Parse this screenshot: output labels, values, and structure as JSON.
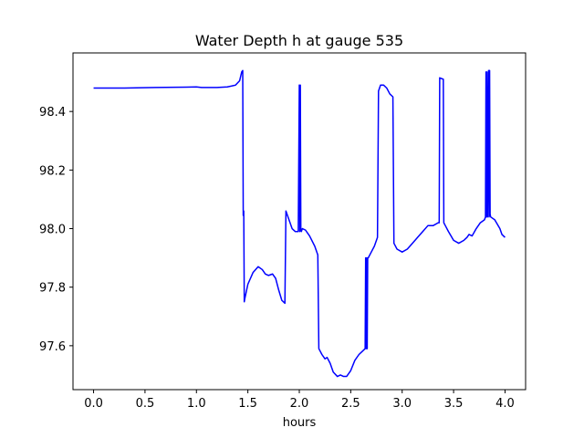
{
  "chart_data": {
    "type": "line",
    "title": "Water Depth h at gauge 535",
    "xlabel": "hours",
    "ylabel": "",
    "xlim": [
      -0.2,
      4.2
    ],
    "ylim": [
      97.45,
      98.6
    ],
    "x_ticks": [
      0.0,
      0.5,
      1.0,
      1.5,
      2.0,
      2.5,
      3.0,
      3.5,
      4.0
    ],
    "x_tick_labels": [
      "0.0",
      "0.5",
      "1.0",
      "1.5",
      "2.0",
      "2.5",
      "3.0",
      "3.5",
      "4.0"
    ],
    "y_ticks": [
      97.6,
      97.8,
      98.0,
      98.2,
      98.4
    ],
    "y_tick_labels": [
      "97.6",
      "97.8",
      "98.0",
      "98.2",
      "98.4"
    ],
    "grid": false,
    "legend": "none",
    "series": [
      {
        "color": "#0000ff",
        "x": [
          0.0,
          0.3,
          0.6,
          0.9,
          1.0,
          1.05,
          1.2,
          1.3,
          1.38,
          1.42,
          1.44,
          1.45,
          1.455,
          1.46,
          1.465,
          1.47,
          1.5,
          1.55,
          1.6,
          1.64,
          1.67,
          1.7,
          1.74,
          1.77,
          1.8,
          1.83,
          1.86,
          1.87,
          1.875,
          1.9,
          1.93,
          1.96,
          1.99,
          2.0,
          2.005,
          2.01,
          2.015,
          2.02,
          2.025,
          2.03,
          2.06,
          2.1,
          2.15,
          2.18,
          2.19,
          2.22,
          2.25,
          2.27,
          2.3,
          2.33,
          2.37,
          2.4,
          2.43,
          2.46,
          2.5,
          2.54,
          2.58,
          2.61,
          2.64,
          2.645,
          2.65,
          2.655,
          2.66,
          2.665,
          2.67,
          2.7,
          2.73,
          2.76,
          2.77,
          2.79,
          2.82,
          2.85,
          2.88,
          2.91,
          2.92,
          2.95,
          3.0,
          3.05,
          3.1,
          3.15,
          3.2,
          3.25,
          3.3,
          3.35,
          3.36,
          3.365,
          3.4,
          3.405,
          3.42,
          3.45,
          3.5,
          3.55,
          3.6,
          3.63,
          3.65,
          3.68,
          3.72,
          3.76,
          3.8,
          3.81,
          3.815,
          3.82,
          3.825,
          3.83,
          3.84,
          3.845,
          3.85,
          3.855,
          3.86,
          3.9,
          3.95,
          3.97,
          4.0
        ],
        "values": [
          98.48,
          98.48,
          98.482,
          98.483,
          98.484,
          98.482,
          98.482,
          98.484,
          98.49,
          98.505,
          98.535,
          98.54,
          98.045,
          98.06,
          97.75,
          97.76,
          97.81,
          97.85,
          97.87,
          97.86,
          97.845,
          97.84,
          97.845,
          97.83,
          97.79,
          97.755,
          97.745,
          98.06,
          98.055,
          98.03,
          98.0,
          97.99,
          97.99,
          98.49,
          97.99,
          98.49,
          97.995,
          97.99,
          97.995,
          98.0,
          97.995,
          97.975,
          97.94,
          97.91,
          97.59,
          97.57,
          97.555,
          97.56,
          97.54,
          97.51,
          97.495,
          97.5,
          97.495,
          97.495,
          97.515,
          97.55,
          97.57,
          97.58,
          97.59,
          97.9,
          97.59,
          97.9,
          97.59,
          97.9,
          97.9,
          97.92,
          97.94,
          97.97,
          98.47,
          98.49,
          98.49,
          98.48,
          98.46,
          98.45,
          97.95,
          97.93,
          97.92,
          97.93,
          97.95,
          97.97,
          97.99,
          98.01,
          98.01,
          98.02,
          98.02,
          98.515,
          98.51,
          98.02,
          98.01,
          97.99,
          97.96,
          97.95,
          97.96,
          97.97,
          97.98,
          97.975,
          98.0,
          98.02,
          98.03,
          98.04,
          98.535,
          98.04,
          98.535,
          98.04,
          98.54,
          98.04,
          98.54,
          98.05,
          98.04,
          98.03,
          98.0,
          97.98,
          97.97
        ]
      }
    ]
  }
}
